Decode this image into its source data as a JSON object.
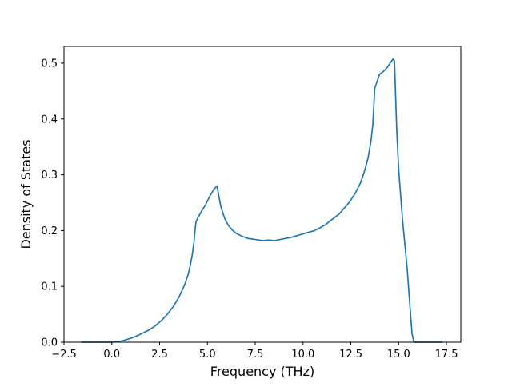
{
  "chart_data": {
    "type": "line",
    "title": "",
    "xlabel": "Frequency (THz)",
    "ylabel": "Density of States",
    "xlim": [
      -2.5,
      18.25
    ],
    "ylim": [
      0.0,
      0.53
    ],
    "xticks": [
      -2.5,
      0.0,
      2.5,
      5.0,
      7.5,
      10.0,
      12.5,
      15.0,
      17.5
    ],
    "xtick_labels": [
      "−2.5",
      "0.0",
      "2.5",
      "5.0",
      "7.5",
      "10.0",
      "12.5",
      "15.0",
      "17.5"
    ],
    "yticks": [
      0.0,
      0.1,
      0.2,
      0.3,
      0.4,
      0.5
    ],
    "ytick_labels": [
      "0.0",
      "0.1",
      "0.2",
      "0.3",
      "0.4",
      "0.5"
    ],
    "grid": false,
    "series": [
      {
        "color": "#1f77b4",
        "x": [
          -1.6,
          -1.0,
          -0.5,
          0.0,
          0.3,
          0.6,
          1.0,
          1.3,
          1.6,
          2.0,
          2.3,
          2.6,
          2.9,
          3.2,
          3.5,
          3.8,
          4.0,
          4.1,
          4.2,
          4.3,
          4.35,
          4.4,
          4.5,
          4.7,
          4.9,
          5.1,
          5.3,
          5.5,
          5.7,
          5.9,
          6.1,
          6.3,
          6.5,
          6.8,
          7.1,
          7.5,
          7.9,
          8.2,
          8.5,
          8.8,
          9.1,
          9.4,
          9.7,
          10.0,
          10.3,
          10.6,
          10.9,
          11.2,
          11.4,
          11.6,
          11.9,
          12.1,
          12.4,
          12.7,
          13.0,
          13.2,
          13.4,
          13.55,
          13.65,
          13.75,
          14.0,
          14.2,
          14.4,
          14.55,
          14.7,
          14.78,
          14.9,
          15.0,
          15.2,
          15.45,
          15.6,
          15.7,
          15.8,
          16.0,
          16.5,
          17.3
        ],
        "y": [
          0.0,
          0.0,
          0.0,
          0.0,
          0.001,
          0.003,
          0.007,
          0.011,
          0.016,
          0.023,
          0.03,
          0.039,
          0.05,
          0.063,
          0.08,
          0.102,
          0.122,
          0.137,
          0.155,
          0.18,
          0.2,
          0.215,
          0.223,
          0.235,
          0.246,
          0.26,
          0.272,
          0.28,
          0.243,
          0.222,
          0.209,
          0.201,
          0.195,
          0.19,
          0.186,
          0.184,
          0.182,
          0.183,
          0.182,
          0.184,
          0.186,
          0.188,
          0.191,
          0.194,
          0.197,
          0.2,
          0.205,
          0.211,
          0.217,
          0.222,
          0.23,
          0.238,
          0.25,
          0.265,
          0.285,
          0.305,
          0.33,
          0.36,
          0.39,
          0.455,
          0.48,
          0.485,
          0.492,
          0.5,
          0.507,
          0.504,
          0.38,
          0.31,
          0.22,
          0.13,
          0.06,
          0.015,
          0.0,
          0.0,
          0.0,
          0.0
        ]
      }
    ]
  }
}
